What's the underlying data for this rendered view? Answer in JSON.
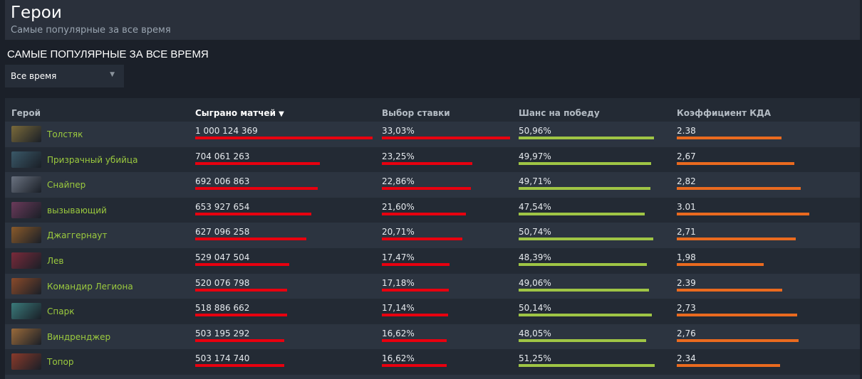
{
  "header": {
    "title": "Герои",
    "subtitle": "Самые популярные за все время"
  },
  "section_title": "САМЫЕ ПОПУЛЯРНЫЕ ЗА ВСЕ ВРЕМЯ",
  "dropdown": {
    "selected": "Все время"
  },
  "columns": {
    "hero": "Герой",
    "matches": "Сыграно матчей",
    "pick": "Выбор ставки",
    "win": "Шанс на победу",
    "kda": "Коэффициент КДА"
  },
  "colors": {
    "matches": "#e8000f",
    "pick": "#e8000f",
    "win": "#9fc545",
    "kda": "#ea6a1f"
  },
  "rows": [
    {
      "name": "Толстяк",
      "matches": "1 000 124 369",
      "matches_n": 1000124369,
      "pick": "33,03%",
      "pick_n": 33.03,
      "win": "50,96%",
      "win_n": 50.96,
      "kda": "2.38",
      "kda_n": 2.38,
      "icon": "#7a6a3a"
    },
    {
      "name": "Призрачный убийца",
      "matches": "704 061 263",
      "matches_n": 704061263,
      "pick": "23,25%",
      "pick_n": 23.25,
      "win": "49,97%",
      "win_n": 49.97,
      "kda": "2,67",
      "kda_n": 2.67,
      "icon": "#3a5868"
    },
    {
      "name": "Снайпер",
      "matches": "692 006 863",
      "matches_n": 692006863,
      "pick": "22,86%",
      "pick_n": 22.86,
      "win": "49,71%",
      "win_n": 49.71,
      "kda": "2,82",
      "kda_n": 2.82,
      "icon": "#6a7280"
    },
    {
      "name": "вызывающий",
      "matches": "653 927 654",
      "matches_n": 653927654,
      "pick": "21,60%",
      "pick_n": 21.6,
      "win": "47,54%",
      "win_n": 47.54,
      "kda": "3.01",
      "kda_n": 3.01,
      "icon": "#6a3a5a"
    },
    {
      "name": "Джаггернаут",
      "matches": "627 096 258",
      "matches_n": 627096258,
      "pick": "20,71%",
      "pick_n": 20.71,
      "win": "50,74%",
      "win_n": 50.74,
      "kda": "2,71",
      "kda_n": 2.71,
      "icon": "#8a5a2a"
    },
    {
      "name": "Лев",
      "matches": "529 047 504",
      "matches_n": 529047504,
      "pick": "17,47%",
      "pick_n": 17.47,
      "win": "48,39%",
      "win_n": 48.39,
      "kda": "1,98",
      "kda_n": 1.98,
      "icon": "#7a2a3a"
    },
    {
      "name": "Командир Легиона",
      "matches": "520 076 798",
      "matches_n": 520076798,
      "pick": "17,18%",
      "pick_n": 17.18,
      "win": "49,06%",
      "win_n": 49.06,
      "kda": "2.39",
      "kda_n": 2.39,
      "icon": "#8a4a2a"
    },
    {
      "name": "Спарк",
      "matches": "518 886 662",
      "matches_n": 518886662,
      "pick": "17,14%",
      "pick_n": 17.14,
      "win": "50,14%",
      "win_n": 50.14,
      "kda": "2,73",
      "kda_n": 2.73,
      "icon": "#3a7a7a"
    },
    {
      "name": "Виндренджер",
      "matches": "503 195 292",
      "matches_n": 503195292,
      "pick": "16,62%",
      "pick_n": 16.62,
      "win": "48,05%",
      "win_n": 48.05,
      "kda": "2,76",
      "kda_n": 2.76,
      "icon": "#9a6a3a"
    },
    {
      "name": "Топор",
      "matches": "503 174 740",
      "matches_n": 503174740,
      "pick": "16,62%",
      "pick_n": 16.62,
      "win": "51,25%",
      "win_n": 51.25,
      "kda": "2.34",
      "kda_n": 2.34,
      "icon": "#8a3a2a"
    }
  ]
}
